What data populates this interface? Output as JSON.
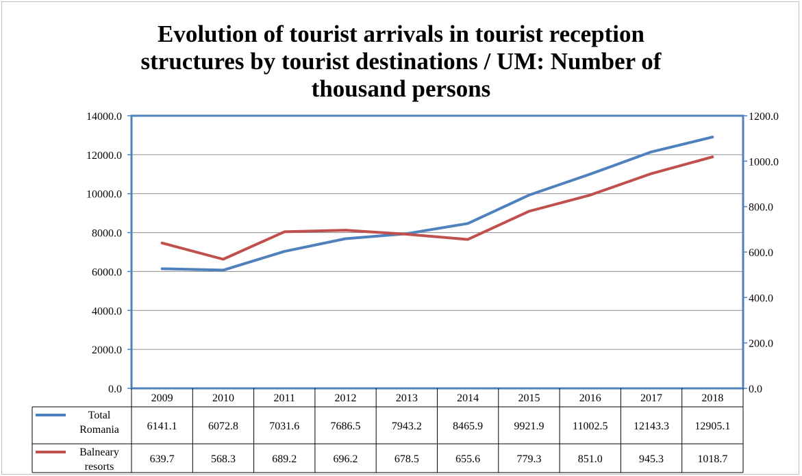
{
  "chart_data": {
    "type": "line",
    "title_lines": [
      "Evolution of tourist arrivals in tourist reception",
      "structures by tourist destinations / UM: Number of",
      "thousand persons"
    ],
    "x": [
      "2009",
      "2010",
      "2011",
      "2012",
      "2013",
      "2014",
      "2015",
      "2016",
      "2017",
      "2018"
    ],
    "y_left": {
      "min": 0,
      "max": 14000,
      "ticks": [
        "0.0",
        "2000.0",
        "4000.0",
        "6000.0",
        "8000.0",
        "10000.0",
        "12000.0",
        "14000.0"
      ]
    },
    "y_right": {
      "min": 0,
      "max": 1200,
      "ticks": [
        "0.0",
        "200.0",
        "400.0",
        "600.0",
        "800.0",
        "1000.0",
        "1200.0"
      ]
    },
    "grid": true,
    "legend": "data-table-bottom",
    "series": [
      {
        "name_lines": [
          "Total",
          "Romania"
        ],
        "axis": "left",
        "color": "#4f81bd",
        "values": [
          6141.1,
          6072.8,
          7031.6,
          7686.5,
          7943.2,
          8465.9,
          9921.9,
          11002.5,
          12143.3,
          12905.1
        ],
        "labels": [
          "6141.1",
          "6072.8",
          "7031.6",
          "7686.5",
          "7943.2",
          "8465.9",
          "9921.9",
          "11002.5",
          "12143.3",
          "12905.1"
        ]
      },
      {
        "name_lines": [
          "Balneary",
          "resorts"
        ],
        "axis": "right",
        "color": "#c0504d",
        "values": [
          639.7,
          568.3,
          689.2,
          696.2,
          678.5,
          655.6,
          779.3,
          851.0,
          945.3,
          1018.7
        ],
        "labels": [
          "639.7",
          "568.3",
          "689.2",
          "696.2",
          "678.5",
          "655.6",
          "779.3",
          "851.0",
          "945.3",
          "1018.7"
        ]
      }
    ]
  }
}
